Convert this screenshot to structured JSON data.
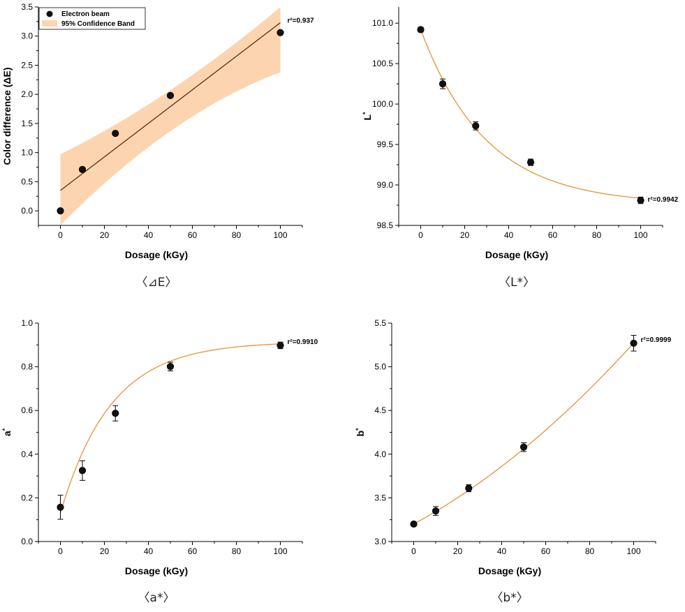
{
  "colors": {
    "fit_curve": "#e69138",
    "band_fill": "#fcd5b0",
    "marker": "#111111",
    "linear_fit": "#5a2e0c"
  },
  "chart_data": [
    {
      "id": "dE",
      "type": "scatter",
      "caption": "〈⊿E〉",
      "xlabel": "Dosage (kGy)",
      "ylabel": "Color difference (ΔE)",
      "ylabel_italic": false,
      "xlim": [
        -10,
        110
      ],
      "ylim": [
        -0.25,
        3.5
      ],
      "xticks": [
        0,
        20,
        40,
        60,
        80,
        100
      ],
      "yticks": [
        0.0,
        0.5,
        1.0,
        1.5,
        2.0,
        2.5,
        3.0,
        3.5
      ],
      "ytick_decimals": 1,
      "x": [
        0,
        10,
        25,
        50,
        100
      ],
      "y": [
        0.0,
        0.71,
        1.33,
        1.98,
        3.06
      ],
      "err": [
        0,
        0,
        0,
        0,
        0
      ],
      "fit": {
        "kind": "linear",
        "a": 0.35,
        "b": 0.0288
      },
      "band": {
        "low_at_0": -0.25,
        "high_at_0": 0.97,
        "low_at_100": 2.38,
        "high_at_100": 3.5
      },
      "r2_label": "r²=0.937",
      "legend": {
        "marker_label": "Electron beam",
        "band_label": "95% Confidence Band",
        "placement": "top-left"
      }
    },
    {
      "id": "L",
      "type": "scatter",
      "caption": "〈L*〉",
      "xlabel": "Dosage (kGy)",
      "ylabel": "L*",
      "xlim": [
        -10,
        110
      ],
      "ylim": [
        98.5,
        101.2
      ],
      "xticks": [
        0,
        20,
        40,
        60,
        80,
        100
      ],
      "yticks": [
        98.5,
        99.0,
        99.5,
        100.0,
        100.5,
        101.0
      ],
      "ytick_decimals": 1,
      "x": [
        0,
        10,
        25,
        50,
        100
      ],
      "y": [
        100.92,
        100.25,
        99.73,
        99.28,
        98.81
      ],
      "err": [
        0.03,
        0.06,
        0.05,
        0.04,
        0.04
      ],
      "fit": {
        "kind": "exp",
        "c": 98.76,
        "a": 2.16,
        "k": 0.0335
      },
      "r2_label": "r²=0.9942"
    },
    {
      "id": "a",
      "type": "scatter",
      "caption": "〈a*〉",
      "xlabel": "Dosage (kGy)",
      "ylabel": "a*",
      "xlim": [
        -10,
        110
      ],
      "ylim": [
        0.0,
        1.0
      ],
      "xticks": [
        0,
        20,
        40,
        60,
        80,
        100
      ],
      "yticks": [
        0.0,
        0.2,
        0.4,
        0.6,
        0.8,
        1.0
      ],
      "ytick_decimals": 1,
      "x": [
        0,
        10,
        25,
        50,
        100
      ],
      "y": [
        0.157,
        0.325,
        0.587,
        0.801,
        0.898
      ],
      "err": [
        0.055,
        0.045,
        0.035,
        0.02,
        0.015
      ],
      "fit": {
        "kind": "exp",
        "c": 0.915,
        "a": -0.785,
        "k": 0.0435
      },
      "r2_label": "r²=0.9910"
    },
    {
      "id": "b",
      "type": "scatter",
      "caption": "〈b*〉",
      "xlabel": "Dosage (kGy)",
      "ylabel": "b*",
      "xlim": [
        -10,
        110
      ],
      "ylim": [
        3.0,
        5.5
      ],
      "xticks": [
        0,
        20,
        40,
        60,
        80,
        100
      ],
      "yticks": [
        3.0,
        3.5,
        4.0,
        4.5,
        5.0,
        5.5
      ],
      "ytick_decimals": 1,
      "x": [
        0,
        10,
        25,
        50,
        100
      ],
      "y": [
        3.2,
        3.35,
        3.61,
        4.08,
        5.27
      ],
      "err": [
        0.02,
        0.05,
        0.04,
        0.05,
        0.09
      ],
      "fit": {
        "kind": "poly2",
        "c0": 3.2,
        "c1": 0.0137,
        "c2": 7.03e-05
      },
      "r2_label": "r²=0.9999"
    }
  ]
}
